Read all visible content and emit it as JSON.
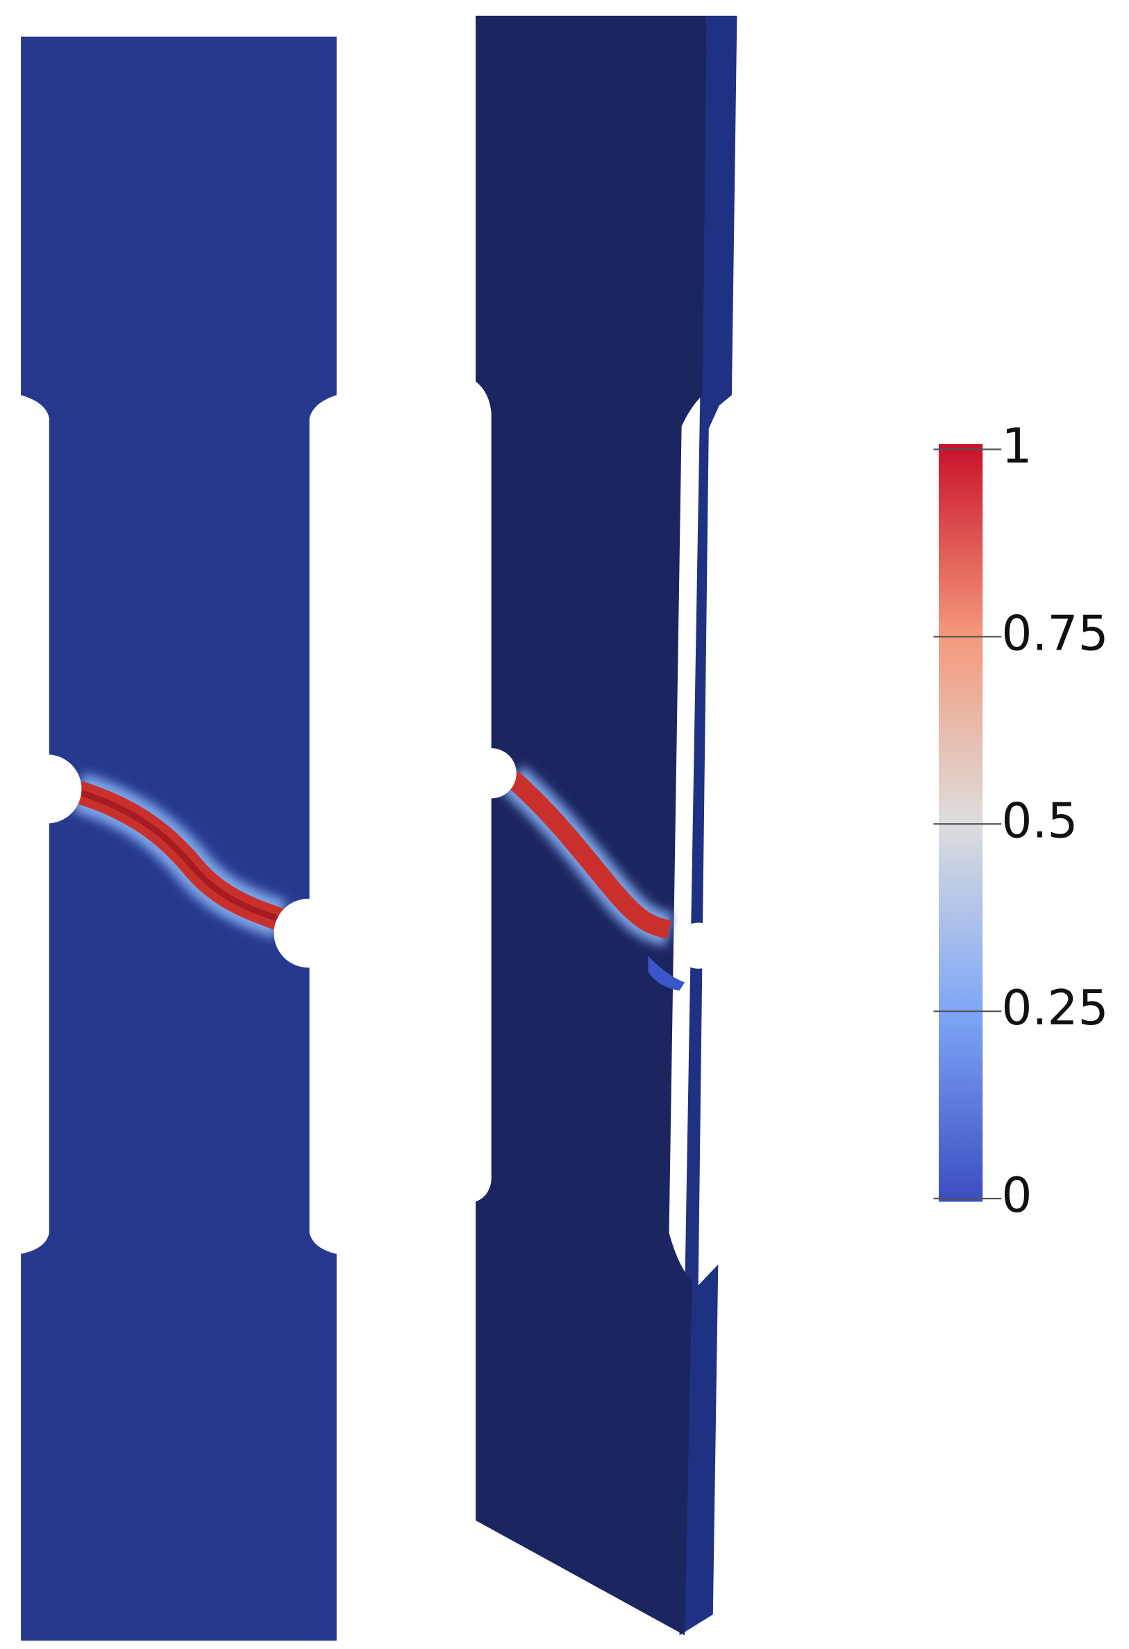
{
  "colorbar": {
    "range": [
      0,
      1
    ],
    "ticks": [
      0,
      0.25,
      0.5,
      0.75,
      1
    ]
  }
}
